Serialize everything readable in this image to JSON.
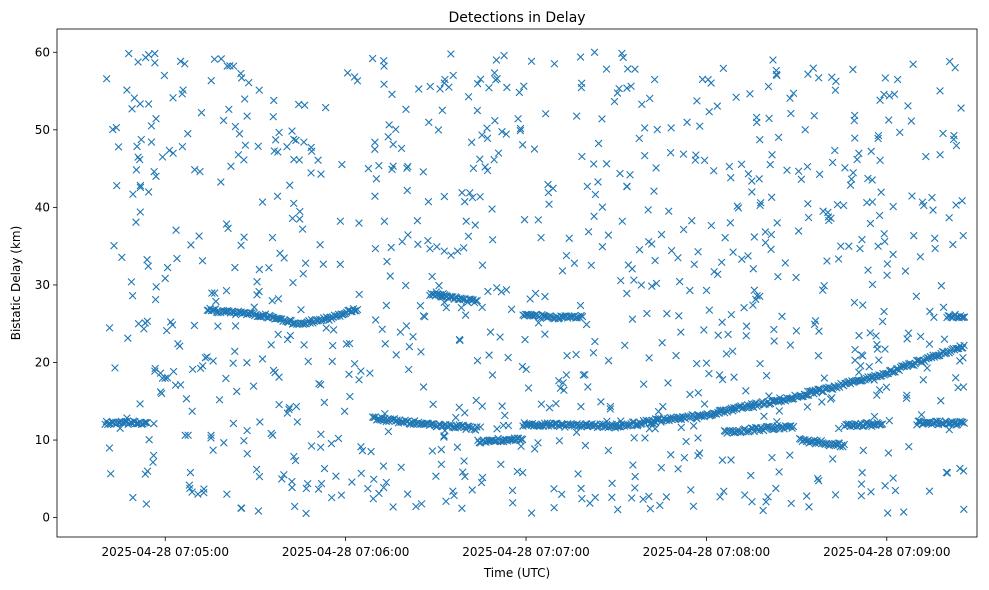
{
  "chart_data": {
    "type": "scatter",
    "title": "Detections in Delay",
    "xlabel": "Time (UTC)",
    "ylabel": "Bistatic Delay (km)",
    "marker": "x",
    "color": "#1f77b4",
    "grid": false,
    "legend": "none",
    "x_is_datetime": true,
    "xlim": [
      "2025-04-28 07:04:24",
      "2025-04-28 07:09:30"
    ],
    "ylim": [
      -2.5,
      63
    ],
    "xticks": [
      "2025-04-28 07:05:00",
      "2025-04-28 07:06:00",
      "2025-04-28 07:07:00",
      "2025-04-28 07:08:00",
      "2025-04-28 07:09:00"
    ],
    "yticks": [
      0,
      10,
      20,
      30,
      40,
      50,
      60
    ],
    "x_range_seconds": [
      16,
      302
    ],
    "tracks": [
      {
        "description": "near-flat track",
        "x_seconds": [
          16,
          30
        ],
        "y": [
          12.2,
          12.2
        ]
      },
      {
        "description": "descending then ascending track",
        "x_seconds": [
          50,
          70,
          80,
          92,
          100
        ],
        "y": [
          26.8,
          26.0,
          25.0,
          25.8,
          27.0
        ]
      },
      {
        "description": "arc near 28 km",
        "x_seconds": [
          124,
          140
        ],
        "y": [
          28.8,
          27.8
        ]
      },
      {
        "description": "descending track",
        "x_seconds": [
          105,
          130,
          140
        ],
        "y": [
          12.8,
          11.8,
          11.5
        ]
      },
      {
        "description": "short segment",
        "x_seconds": [
          140,
          155
        ],
        "y": [
          9.8,
          10.2
        ]
      },
      {
        "description": "flat segment",
        "x_seconds": [
          155,
          175
        ],
        "y": [
          26.0,
          25.8
        ]
      },
      {
        "description": "long ascending track",
        "x_seconds": [
          155,
          185,
          215,
          245,
          275,
          302
        ],
        "y": [
          12.0,
          11.8,
          13.2,
          15.5,
          18.5,
          22.2
        ]
      },
      {
        "description": "flat segment",
        "x_seconds": [
          222,
          245
        ],
        "y": [
          11.0,
          11.8
        ]
      },
      {
        "description": "flat segment",
        "x_seconds": [
          247,
          262
        ],
        "y": [
          10.0,
          9.3
        ]
      },
      {
        "description": "flat segment",
        "x_seconds": [
          262,
          275
        ],
        "y": [
          12.0,
          12.0
        ]
      },
      {
        "description": "flat segment",
        "x_seconds": [
          286,
          302
        ],
        "y": [
          12.2,
          12.2
        ]
      },
      {
        "description": "flat segment",
        "x_seconds": [
          296,
          302
        ],
        "y": [
          26.0,
          26.0
        ]
      }
    ],
    "noise_points_estimate": 950
  }
}
